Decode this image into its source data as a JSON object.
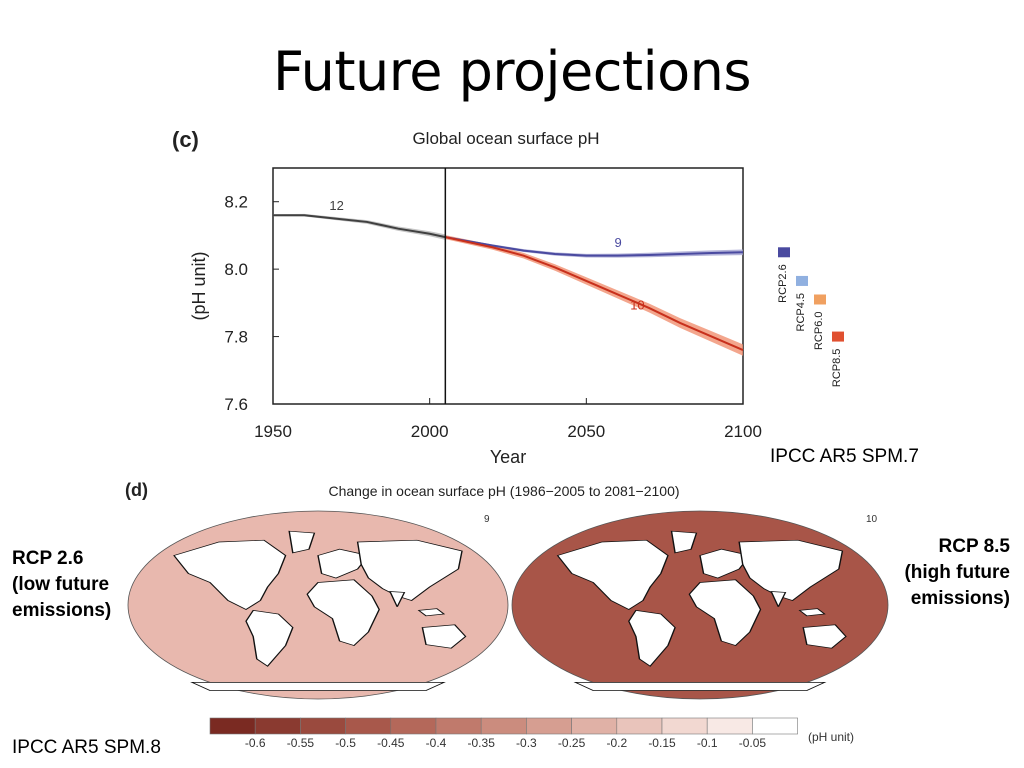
{
  "slide": {
    "title": "Future projections",
    "ref_top": "IPCC AR5 SPM.7",
    "ref_bottom": "IPCC AR5 SPM.8",
    "left_label": [
      "RCP 2.6",
      "(low future",
      "emissions)"
    ],
    "right_label": [
      "RCP 8.5",
      "(high future",
      "emissions)"
    ]
  },
  "chart_data": [
    {
      "type": "line",
      "panel": "(c)",
      "title": "Global ocean surface pH",
      "xlabel": "Year",
      "ylabel": "(pH unit)",
      "xlim": [
        1950,
        2100
      ],
      "ylim": [
        7.6,
        8.3
      ],
      "xticks": [
        1950,
        2000,
        2050,
        2100
      ],
      "yticks": [
        7.6,
        7.8,
        8.0,
        8.2
      ],
      "vline": 2005,
      "series": [
        {
          "name": "",
          "label": "12",
          "color": "#404040",
          "band": "#b8b8b8",
          "x": [
            1950,
            1960,
            1970,
            1980,
            1990,
            2000,
            2005
          ],
          "y": [
            8.16,
            8.16,
            8.15,
            8.14,
            8.12,
            8.105,
            8.095
          ]
        },
        {
          "name": "",
          "label": "9",
          "color": "#4a4aa0",
          "band": "#a0a0d0",
          "x": [
            2005,
            2020,
            2030,
            2040,
            2050,
            2060,
            2070,
            2080,
            2090,
            2100
          ],
          "y": [
            8.095,
            8.07,
            8.055,
            8.045,
            8.04,
            8.04,
            8.042,
            8.045,
            8.048,
            8.05
          ]
        },
        {
          "name": "",
          "label": "10",
          "color": "#c8301c",
          "band": "#f09070",
          "x": [
            2005,
            2020,
            2030,
            2040,
            2050,
            2060,
            2070,
            2080,
            2090,
            2100
          ],
          "y": [
            8.095,
            8.065,
            8.04,
            8.005,
            7.965,
            7.925,
            7.885,
            7.84,
            7.8,
            7.76
          ]
        }
      ],
      "side_bars": [
        {
          "name": "RCP2.6",
          "color": "#4a4aa0",
          "y": 8.05
        },
        {
          "name": "RCP4.5",
          "color": "#90b0e0",
          "y": 7.965
        },
        {
          "name": "RCP6.0",
          "color": "#f0a060",
          "y": 7.91
        },
        {
          "name": "RCP8.5",
          "color": "#e05030",
          "y": 7.8
        }
      ]
    },
    {
      "type": "heatmap",
      "panel": "(d)",
      "title": "Change in ocean surface pH (1986−2005 to 2081−2100)",
      "maps": [
        {
          "label": "9",
          "fill": "#e8b8ae"
        },
        {
          "label": "10",
          "fill": "#a85548"
        }
      ],
      "colorbar": {
        "ticks": [
          "-0.6",
          "-0.55",
          "-0.5",
          "-0.45",
          "-0.4",
          "-0.35",
          "-0.3",
          "-0.25",
          "-0.2",
          "-0.15",
          "-0.1",
          "-0.05"
        ],
        "colors": [
          "#7a2a22",
          "#8a3a30",
          "#9a4a3e",
          "#a8584b",
          "#b4685a",
          "#c07a6c",
          "#cb8c7e",
          "#d69e91",
          "#e0b1a6",
          "#e9c4bb",
          "#f2d8d1",
          "#f8e9e5",
          "#ffffff"
        ],
        "unit": "(pH unit)"
      }
    }
  ]
}
